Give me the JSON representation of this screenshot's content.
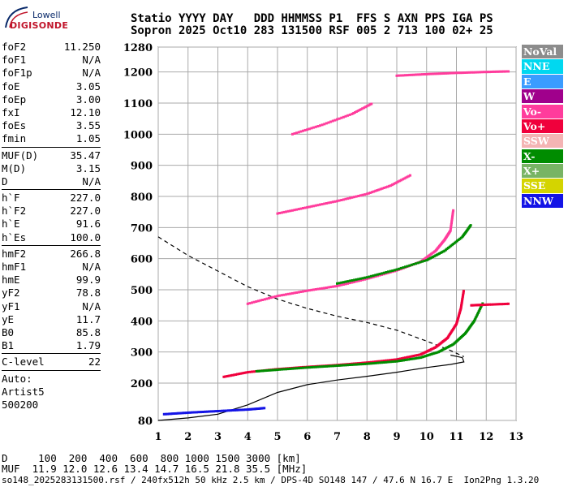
{
  "logo": {
    "top": "Lowell",
    "bottom": "DIGISONDE"
  },
  "header": {
    "line1": "Statio YYYY DAY   DDD HHMMSS P1  FFS S AXN PPS IGA PS",
    "line2": "Sopron 2025 Oct10 283 131500 RSF 005 2 713 100 02+ 25"
  },
  "params": {
    "group1": [
      {
        "label": "foF2",
        "value": "11.250"
      },
      {
        "label": "foF1",
        "value": "N/A"
      },
      {
        "label": "foF1p",
        "value": "N/A"
      },
      {
        "label": "foE",
        "value": "3.05"
      },
      {
        "label": "foEp",
        "value": "3.00"
      },
      {
        "label": "fxI",
        "value": "12.10"
      },
      {
        "label": "foEs",
        "value": "3.55"
      },
      {
        "label": "fmin",
        "value": "1.05"
      }
    ],
    "group2": [
      {
        "label": "MUF(D)",
        "value": "35.47"
      },
      {
        "label": "M(D)",
        "value": "3.15"
      },
      {
        "label": "D",
        "value": "N/A"
      }
    ],
    "group3": [
      {
        "label": "h`F",
        "value": "227.0"
      },
      {
        "label": "h`F2",
        "value": "227.0"
      },
      {
        "label": "h`E",
        "value": "91.6"
      },
      {
        "label": "h`Es",
        "value": "100.0"
      }
    ],
    "group4": [
      {
        "label": "hmF2",
        "value": "266.8"
      },
      {
        "label": "hmF1",
        "value": "N/A"
      },
      {
        "label": "hmE",
        "value": "99.9"
      },
      {
        "label": "yF2",
        "value": "78.8"
      },
      {
        "label": "yF1",
        "value": "N/A"
      },
      {
        "label": "yE",
        "value": "11.7"
      },
      {
        "label": "B0",
        "value": "85.8"
      },
      {
        "label": "B1",
        "value": "1.79"
      }
    ],
    "group5": [
      {
        "label": "C-level",
        "value": "22"
      }
    ],
    "auto": [
      "Auto:",
      "Artist5",
      "500200"
    ]
  },
  "legend": [
    {
      "label": "NoVal",
      "color": "#8c8c8c"
    },
    {
      "label": "NNE",
      "color": "#00d8f0"
    },
    {
      "label": "E",
      "color": "#3a9cff"
    },
    {
      "label": "W",
      "color": "#a0008c"
    },
    {
      "label": "Vo-",
      "color": "#ff3c9c"
    },
    {
      "label": "Vo+",
      "color": "#f0003c"
    },
    {
      "label": "SSW",
      "color": "#f4b4b4"
    },
    {
      "label": "X-",
      "color": "#008c00"
    },
    {
      "label": "X+",
      "color": "#78b464"
    },
    {
      "label": "SSE",
      "color": "#d4d400"
    },
    {
      "label": "NNW",
      "color": "#1414e6"
    }
  ],
  "footer": {
    "d_line": "D     100  200  400  600  800 1000 1500 3000 [km]",
    "muf_line": "MUF  11.9 12.0 12.6 13.4 14.7 16.5 21.8 35.5 [MHz]",
    "file_line": "so148_2025283131500.rsf / 240fx512h 50 kHz 2.5 km / DPS-4D SO148 147 / 47.6 N 16.7 E  Ion2Png 1.3.20"
  },
  "chart_data": {
    "type": "scatter",
    "xlim": [
      1,
      13
    ],
    "ylim": [
      80,
      1280
    ],
    "x_ticks": [
      1,
      2,
      3,
      4,
      5,
      6,
      7,
      8,
      9,
      10,
      11,
      12,
      13
    ],
    "y_ticks": [
      80,
      200,
      300,
      400,
      500,
      600,
      700,
      800,
      900,
      1000,
      1100,
      1200,
      1280
    ],
    "grid": true,
    "traces": [
      {
        "name": "O-trace F2",
        "color": "#f0003c",
        "points": [
          [
            3.2,
            220
          ],
          [
            4,
            235
          ],
          [
            5,
            245
          ],
          [
            6,
            252
          ],
          [
            7,
            258
          ],
          [
            8,
            266
          ],
          [
            9,
            276
          ],
          [
            9.8,
            292
          ],
          [
            10.3,
            315
          ],
          [
            10.7,
            345
          ],
          [
            11,
            390
          ],
          [
            11.15,
            440
          ],
          [
            11.25,
            500
          ]
        ]
      },
      {
        "name": "X-trace F2",
        "color": "#008c00",
        "points": [
          [
            4.3,
            238
          ],
          [
            5,
            243
          ],
          [
            6,
            250
          ],
          [
            7,
            256
          ],
          [
            8,
            262
          ],
          [
            9,
            270
          ],
          [
            9.8,
            282
          ],
          [
            10.4,
            300
          ],
          [
            10.9,
            325
          ],
          [
            11.3,
            360
          ],
          [
            11.6,
            400
          ],
          [
            11.9,
            460
          ]
        ]
      },
      {
        "name": "2nd hop",
        "color": "#ff3c9c",
        "points": [
          [
            4,
            455
          ],
          [
            5,
            480
          ],
          [
            6,
            497
          ],
          [
            7,
            512
          ],
          [
            8,
            535
          ],
          [
            9,
            562
          ],
          [
            9.8,
            590
          ],
          [
            10.3,
            625
          ],
          [
            10.6,
            660
          ],
          [
            10.8,
            690
          ],
          [
            10.9,
            760
          ]
        ]
      },
      {
        "name": "2nd hop X",
        "color": "#008c00",
        "points": [
          [
            7,
            520
          ],
          [
            8,
            540
          ],
          [
            9,
            565
          ],
          [
            10,
            595
          ],
          [
            10.6,
            625
          ],
          [
            11.2,
            670
          ],
          [
            11.5,
            710
          ]
        ]
      },
      {
        "name": "3rd hop",
        "color": "#ff3c9c",
        "points": [
          [
            5,
            745
          ],
          [
            6,
            765
          ],
          [
            7,
            785
          ],
          [
            8,
            808
          ],
          [
            8.8,
            835
          ],
          [
            9.5,
            870
          ]
        ]
      },
      {
        "name": "4th hop",
        "color": "#ff3c9c",
        "points": [
          [
            5.5,
            1000
          ],
          [
            6.5,
            1030
          ],
          [
            7.5,
            1065
          ],
          [
            8.2,
            1100
          ]
        ]
      },
      {
        "name": "upper band",
        "color": "#ff3c9c",
        "points": [
          [
            9,
            1188
          ],
          [
            10,
            1193
          ],
          [
            11,
            1197
          ],
          [
            12,
            1200
          ],
          [
            12.8,
            1202
          ]
        ]
      },
      {
        "name": "Es 2nd",
        "color": "#f0003c",
        "points": [
          [
            11.5,
            450
          ],
          [
            12,
            452
          ],
          [
            12.8,
            455
          ]
        ]
      },
      {
        "name": "E layer",
        "color": "#1414e6",
        "points": [
          [
            1.2,
            100
          ],
          [
            2,
            105
          ],
          [
            3,
            110
          ],
          [
            4,
            115
          ],
          [
            4.6,
            120
          ]
        ]
      }
    ],
    "profile_solid": [
      [
        1,
        80
      ],
      [
        2,
        88
      ],
      [
        3,
        100
      ],
      [
        4,
        130
      ],
      [
        5,
        170
      ],
      [
        6,
        195
      ],
      [
        7,
        210
      ],
      [
        8,
        222
      ],
      [
        9,
        235
      ],
      [
        10,
        250
      ],
      [
        10.8,
        260
      ],
      [
        11.25,
        268
      ],
      [
        11.2,
        282
      ],
      [
        10.8,
        290
      ]
    ],
    "profile_dashed": [
      [
        1,
        670
      ],
      [
        2,
        610
      ],
      [
        3,
        560
      ],
      [
        4,
        510
      ],
      [
        5,
        470
      ],
      [
        6,
        440
      ],
      [
        7,
        415
      ],
      [
        8,
        395
      ],
      [
        9,
        370
      ],
      [
        10,
        335
      ],
      [
        10.8,
        305
      ],
      [
        11.25,
        285
      ]
    ]
  }
}
